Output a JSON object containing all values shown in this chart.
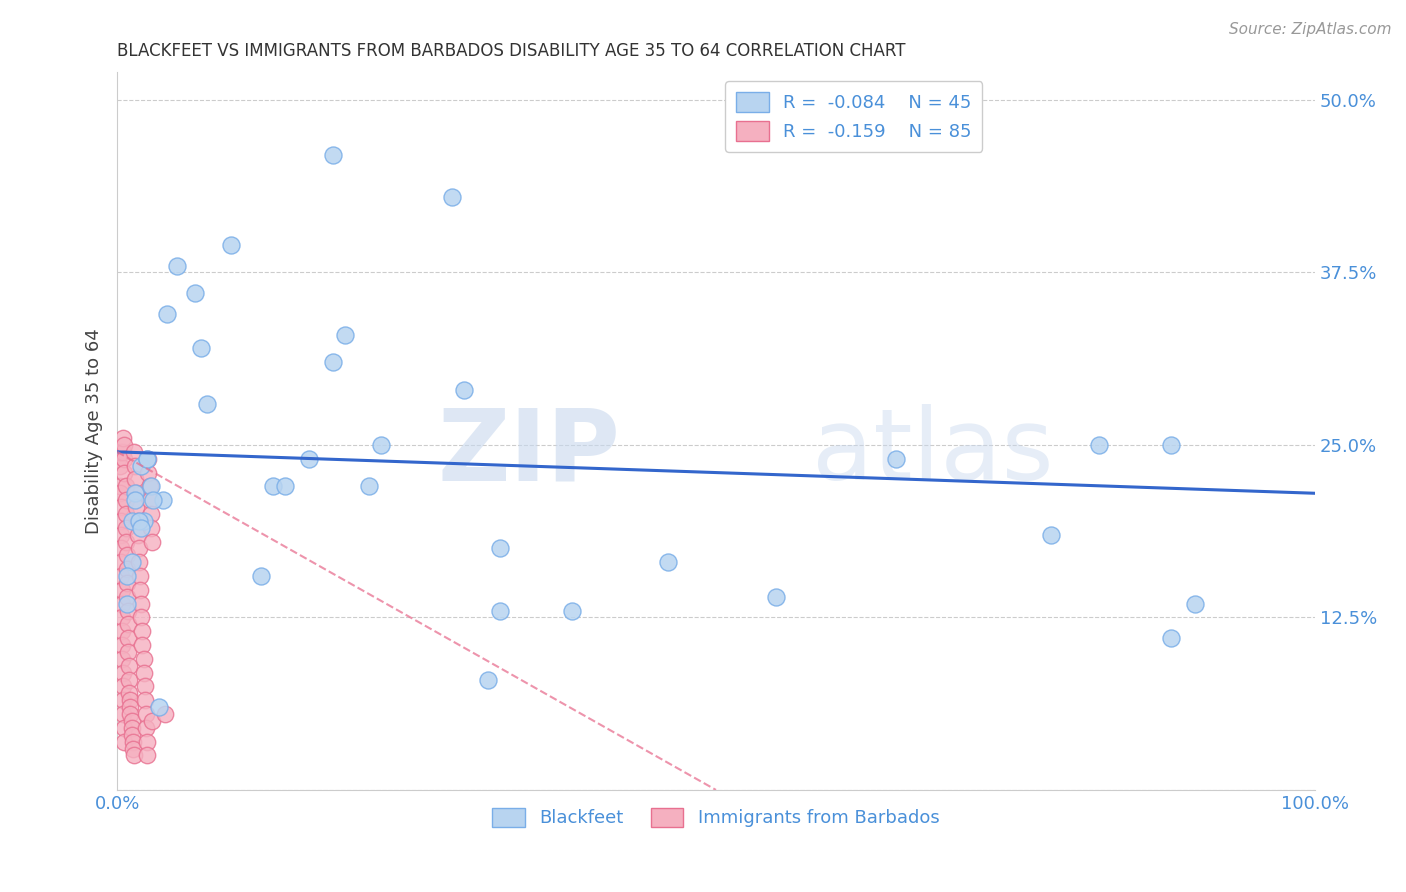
{
  "title": "BLACKFEET VS IMMIGRANTS FROM BARBADOS DISABILITY AGE 35 TO 64 CORRELATION CHART",
  "source": "Source: ZipAtlas.com",
  "tick_color": "#4a90d9",
  "ylabel": "Disability Age 35 to 64",
  "xmin": 0.0,
  "xmax": 1.0,
  "ymin": 0.0,
  "ymax": 0.52,
  "yticks": [
    0.0,
    0.125,
    0.25,
    0.375,
    0.5
  ],
  "ytick_labels": [
    "",
    "12.5%",
    "25.0%",
    "37.5%",
    "50.0%"
  ],
  "xticks": [
    0.0,
    0.1,
    0.2,
    0.3,
    0.4,
    0.5,
    0.6,
    0.7,
    0.8,
    0.9,
    1.0
  ],
  "xtick_labels": [
    "0.0%",
    "",
    "",
    "",
    "",
    "",
    "",
    "",
    "",
    "",
    "100.0%"
  ],
  "legend_r1": "R =  -0.084",
  "legend_n1": "N = 45",
  "legend_r2": "R =  -0.159",
  "legend_n2": "N = 85",
  "legend_label1": "Blackfeet",
  "legend_label2": "Immigrants from Barbados",
  "blue_face": "#b8d4f0",
  "blue_edge": "#7aaee8",
  "pink_face": "#f5b0c0",
  "pink_edge": "#e87090",
  "line_blue": "#3366cc",
  "line_pink": "#e87090",
  "watermark_zip": "ZIP",
  "watermark_atlas": "atlas",
  "blue_x": [
    0.015,
    0.02,
    0.022,
    0.025,
    0.028,
    0.012,
    0.012,
    0.015,
    0.018,
    0.008,
    0.025,
    0.038,
    0.03,
    0.008,
    0.042,
    0.05,
    0.065,
    0.07,
    0.075,
    0.095,
    0.13,
    0.16,
    0.19,
    0.18,
    0.21,
    0.29,
    0.32,
    0.38,
    0.46,
    0.55,
    0.65,
    0.78,
    0.82,
    0.88,
    0.88,
    0.9,
    0.31,
    0.32,
    0.28,
    0.22,
    0.18,
    0.14,
    0.035,
    0.02,
    0.12
  ],
  "blue_y": [
    0.215,
    0.235,
    0.195,
    0.24,
    0.22,
    0.195,
    0.165,
    0.21,
    0.195,
    0.135,
    0.24,
    0.21,
    0.21,
    0.155,
    0.345,
    0.38,
    0.36,
    0.32,
    0.28,
    0.395,
    0.22,
    0.24,
    0.33,
    0.31,
    0.22,
    0.29,
    0.175,
    0.13,
    0.165,
    0.14,
    0.24,
    0.185,
    0.25,
    0.25,
    0.11,
    0.135,
    0.08,
    0.13,
    0.43,
    0.25,
    0.46,
    0.22,
    0.06,
    0.19,
    0.155
  ],
  "pink_x": [
    0.001,
    0.002,
    0.002,
    0.002,
    0.002,
    0.003,
    0.003,
    0.003,
    0.003,
    0.003,
    0.003,
    0.004,
    0.004,
    0.004,
    0.004,
    0.004,
    0.004,
    0.005,
    0.005,
    0.005,
    0.005,
    0.005,
    0.005,
    0.006,
    0.006,
    0.006,
    0.006,
    0.006,
    0.007,
    0.007,
    0.007,
    0.007,
    0.007,
    0.008,
    0.008,
    0.008,
    0.008,
    0.009,
    0.009,
    0.009,
    0.009,
    0.01,
    0.01,
    0.01,
    0.011,
    0.011,
    0.011,
    0.012,
    0.012,
    0.012,
    0.013,
    0.013,
    0.014,
    0.014,
    0.015,
    0.015,
    0.016,
    0.016,
    0.017,
    0.017,
    0.018,
    0.018,
    0.019,
    0.019,
    0.02,
    0.02,
    0.021,
    0.021,
    0.022,
    0.022,
    0.023,
    0.023,
    0.024,
    0.024,
    0.025,
    0.025,
    0.026,
    0.026,
    0.027,
    0.027,
    0.028,
    0.028,
    0.029,
    0.029,
    0.04
  ],
  "pink_y": [
    0.24,
    0.22,
    0.235,
    0.215,
    0.245,
    0.205,
    0.195,
    0.185,
    0.175,
    0.165,
    0.155,
    0.145,
    0.135,
    0.125,
    0.115,
    0.105,
    0.095,
    0.085,
    0.075,
    0.065,
    0.245,
    0.255,
    0.055,
    0.045,
    0.035,
    0.25,
    0.24,
    0.23,
    0.22,
    0.21,
    0.2,
    0.19,
    0.18,
    0.17,
    0.16,
    0.15,
    0.14,
    0.13,
    0.12,
    0.11,
    0.1,
    0.09,
    0.08,
    0.07,
    0.065,
    0.06,
    0.055,
    0.05,
    0.045,
    0.04,
    0.035,
    0.03,
    0.025,
    0.245,
    0.235,
    0.225,
    0.215,
    0.205,
    0.195,
    0.185,
    0.175,
    0.165,
    0.155,
    0.145,
    0.135,
    0.125,
    0.115,
    0.105,
    0.095,
    0.085,
    0.075,
    0.065,
    0.055,
    0.045,
    0.035,
    0.025,
    0.24,
    0.23,
    0.22,
    0.21,
    0.2,
    0.19,
    0.18,
    0.05,
    0.055
  ],
  "blue_trend_x0": 0.0,
  "blue_trend_y0": 0.245,
  "blue_trend_x1": 1.0,
  "blue_trend_y1": 0.215,
  "pink_trend_x0": 0.0,
  "pink_trend_y0": 0.245,
  "pink_trend_x1": 0.5,
  "pink_trend_y1": 0.0
}
